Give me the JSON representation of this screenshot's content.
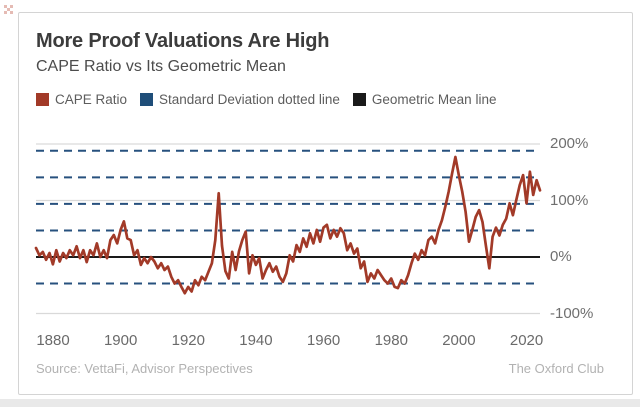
{
  "card": {
    "title": "More Proof Valuations Are High",
    "subtitle": "CAPE Ratio vs Its Geometric Mean",
    "legend": [
      {
        "label": "CAPE Ratio",
        "color": "#A23A28"
      },
      {
        "label": "Standard Deviation dotted line",
        "color": "#1F4E79"
      },
      {
        "label": "Geometric Mean line",
        "color": "#1A1A1A"
      }
    ],
    "footer": {
      "source": "Source: VettaFi, Advisor Perspectives",
      "brand": "The Oxford Club"
    }
  },
  "chart_data": {
    "type": "line",
    "title": "More Proof Valuations Are High",
    "subtitle": "CAPE Ratio vs Its Geometric Mean",
    "series_name": "CAPE Ratio (% deviation from geometric mean)",
    "x_start_year": 1875,
    "x_step_years": 1,
    "values": [
      16,
      3,
      9,
      -5,
      7,
      -13,
      12,
      -8,
      7,
      -2,
      12,
      3,
      19,
      -2,
      12,
      -9,
      12,
      3,
      24,
      0,
      12,
      -2,
      30,
      39,
      24,
      48,
      63,
      33,
      30,
      3,
      12,
      -14,
      -2,
      -11,
      0,
      -8,
      -20,
      -11,
      -23,
      -17,
      -35,
      -47,
      -41,
      -53,
      -64,
      -53,
      -61,
      -41,
      -50,
      -35,
      -41,
      -26,
      -11,
      30,
      113,
      20,
      -25,
      -38,
      9,
      -23,
      10,
      30,
      45,
      -29,
      3,
      -14,
      -2,
      -38,
      -23,
      -11,
      -26,
      -17,
      -35,
      -44,
      -29,
      3,
      -8,
      21,
      9,
      33,
      18,
      42,
      24,
      48,
      27,
      52,
      57,
      33,
      48,
      36,
      51,
      42,
      12,
      24,
      6,
      15,
      -20,
      -8,
      -44,
      -29,
      -38,
      -23,
      -32,
      -41,
      -47,
      -38,
      -53,
      -55,
      -41,
      -47,
      -32,
      -11,
      6,
      -5,
      12,
      3,
      30,
      36,
      24,
      48,
      65,
      89,
      116,
      148,
      177,
      145,
      116,
      80,
      27,
      48,
      71,
      83,
      62,
      20,
      -20,
      36,
      52,
      38,
      57,
      68,
      95,
      74,
      101,
      127,
      145,
      95,
      151,
      110,
      136,
      118
    ],
    "y_axis": {
      "ticks": [
        "200%",
        "100%",
        "0%",
        "-100%"
      ],
      "tick_values": [
        200,
        100,
        0,
        -100
      ],
      "ylim": [
        -115,
        215
      ],
      "unit": "percent deviation"
    },
    "x_axis": {
      "ticks": [
        1880,
        1900,
        1920,
        1940,
        1960,
        1980,
        2000,
        2020
      ]
    },
    "geometric_mean_line_value": 0,
    "std_dev_lines": [
      188,
      141,
      94,
      47,
      -47
    ],
    "grid": "horizontal light gray at 200/100/-100",
    "legend_position": "top-left",
    "line_color": "#A23A28",
    "std_color": "#27517E",
    "mean_color": "#1A1A1A",
    "grid_color": "#d9d9d9"
  }
}
